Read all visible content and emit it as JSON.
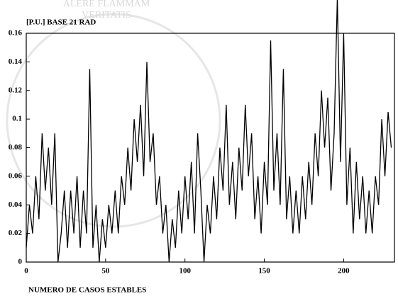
{
  "chart_data": {
    "type": "line",
    "title": "[P.U.] BASE 21 RAD",
    "x_label": "NUMERO DE CASOS ESTABLES",
    "watermark": [
      "ALERE FLAMMAM",
      "VERITATIS"
    ],
    "color": "#000000",
    "x": [
      0,
      2,
      4,
      6,
      8,
      10,
      12,
      14,
      16,
      18,
      20,
      22,
      24,
      26,
      28,
      30,
      32,
      34,
      36,
      38,
      40,
      42,
      44,
      46,
      48,
      50,
      52,
      54,
      56,
      58,
      60,
      62,
      64,
      66,
      68,
      70,
      72,
      74,
      76,
      78,
      80,
      82,
      84,
      86,
      88,
      90,
      92,
      94,
      96,
      98,
      100,
      102,
      104,
      106,
      108,
      110,
      112,
      114,
      116,
      118,
      120,
      122,
      124,
      126,
      128,
      130,
      132,
      134,
      136,
      138,
      140,
      142,
      144,
      146,
      148,
      150,
      152,
      154,
      156,
      158,
      160,
      162,
      164,
      166,
      168,
      170,
      172,
      174,
      176,
      178,
      180,
      182,
      184,
      186,
      188,
      190,
      192,
      194,
      196,
      198,
      200,
      202,
      204,
      206,
      208,
      210,
      212,
      214,
      216,
      218,
      220,
      222,
      224,
      226,
      228,
      230
    ],
    "values": [
      0.01,
      0.04,
      0.02,
      0.06,
      0.03,
      0.09,
      0.05,
      0.08,
      0.04,
      0.09,
      0.0,
      0.02,
      0.05,
      0.01,
      0.05,
      0.02,
      0.06,
      0.01,
      0.05,
      0.02,
      0.135,
      0.01,
      0.04,
      0.0,
      0.03,
      0.01,
      0.04,
      0.02,
      0.05,
      0.02,
      0.06,
      0.04,
      0.08,
      0.05,
      0.1,
      0.07,
      0.11,
      0.06,
      0.14,
      0.07,
      0.09,
      0.04,
      0.06,
      0.02,
      0.04,
      0.0,
      0.03,
      0.01,
      0.05,
      0.02,
      0.06,
      0.03,
      0.07,
      0.02,
      0.09,
      0.05,
      0.0,
      0.04,
      0.02,
      0.06,
      0.03,
      0.08,
      0.05,
      0.11,
      0.04,
      0.07,
      0.03,
      0.08,
      0.05,
      0.11,
      0.06,
      0.09,
      0.03,
      0.06,
      0.02,
      0.07,
      0.04,
      0.155,
      0.05,
      0.09,
      0.04,
      0.135,
      0.03,
      0.06,
      0.02,
      0.05,
      0.02,
      0.06,
      0.03,
      0.07,
      0.04,
      0.09,
      0.06,
      0.12,
      0.08,
      0.115,
      0.05,
      0.09,
      0.185,
      0.07,
      0.16,
      0.04,
      0.08,
      0.02,
      0.07,
      0.03,
      0.06,
      0.02,
      0.05,
      0.02,
      0.06,
      0.04,
      0.1,
      0.06,
      0.105,
      0.08
    ],
    "xlim": [
      0,
      232
    ],
    "xticks": [
      0,
      50,
      100,
      150,
      200
    ],
    "ylim": [
      0,
      0.16
    ],
    "yticks": [
      0,
      0.02,
      0.04,
      0.06,
      0.08,
      0.1,
      0.12,
      0.14,
      0.16
    ]
  }
}
